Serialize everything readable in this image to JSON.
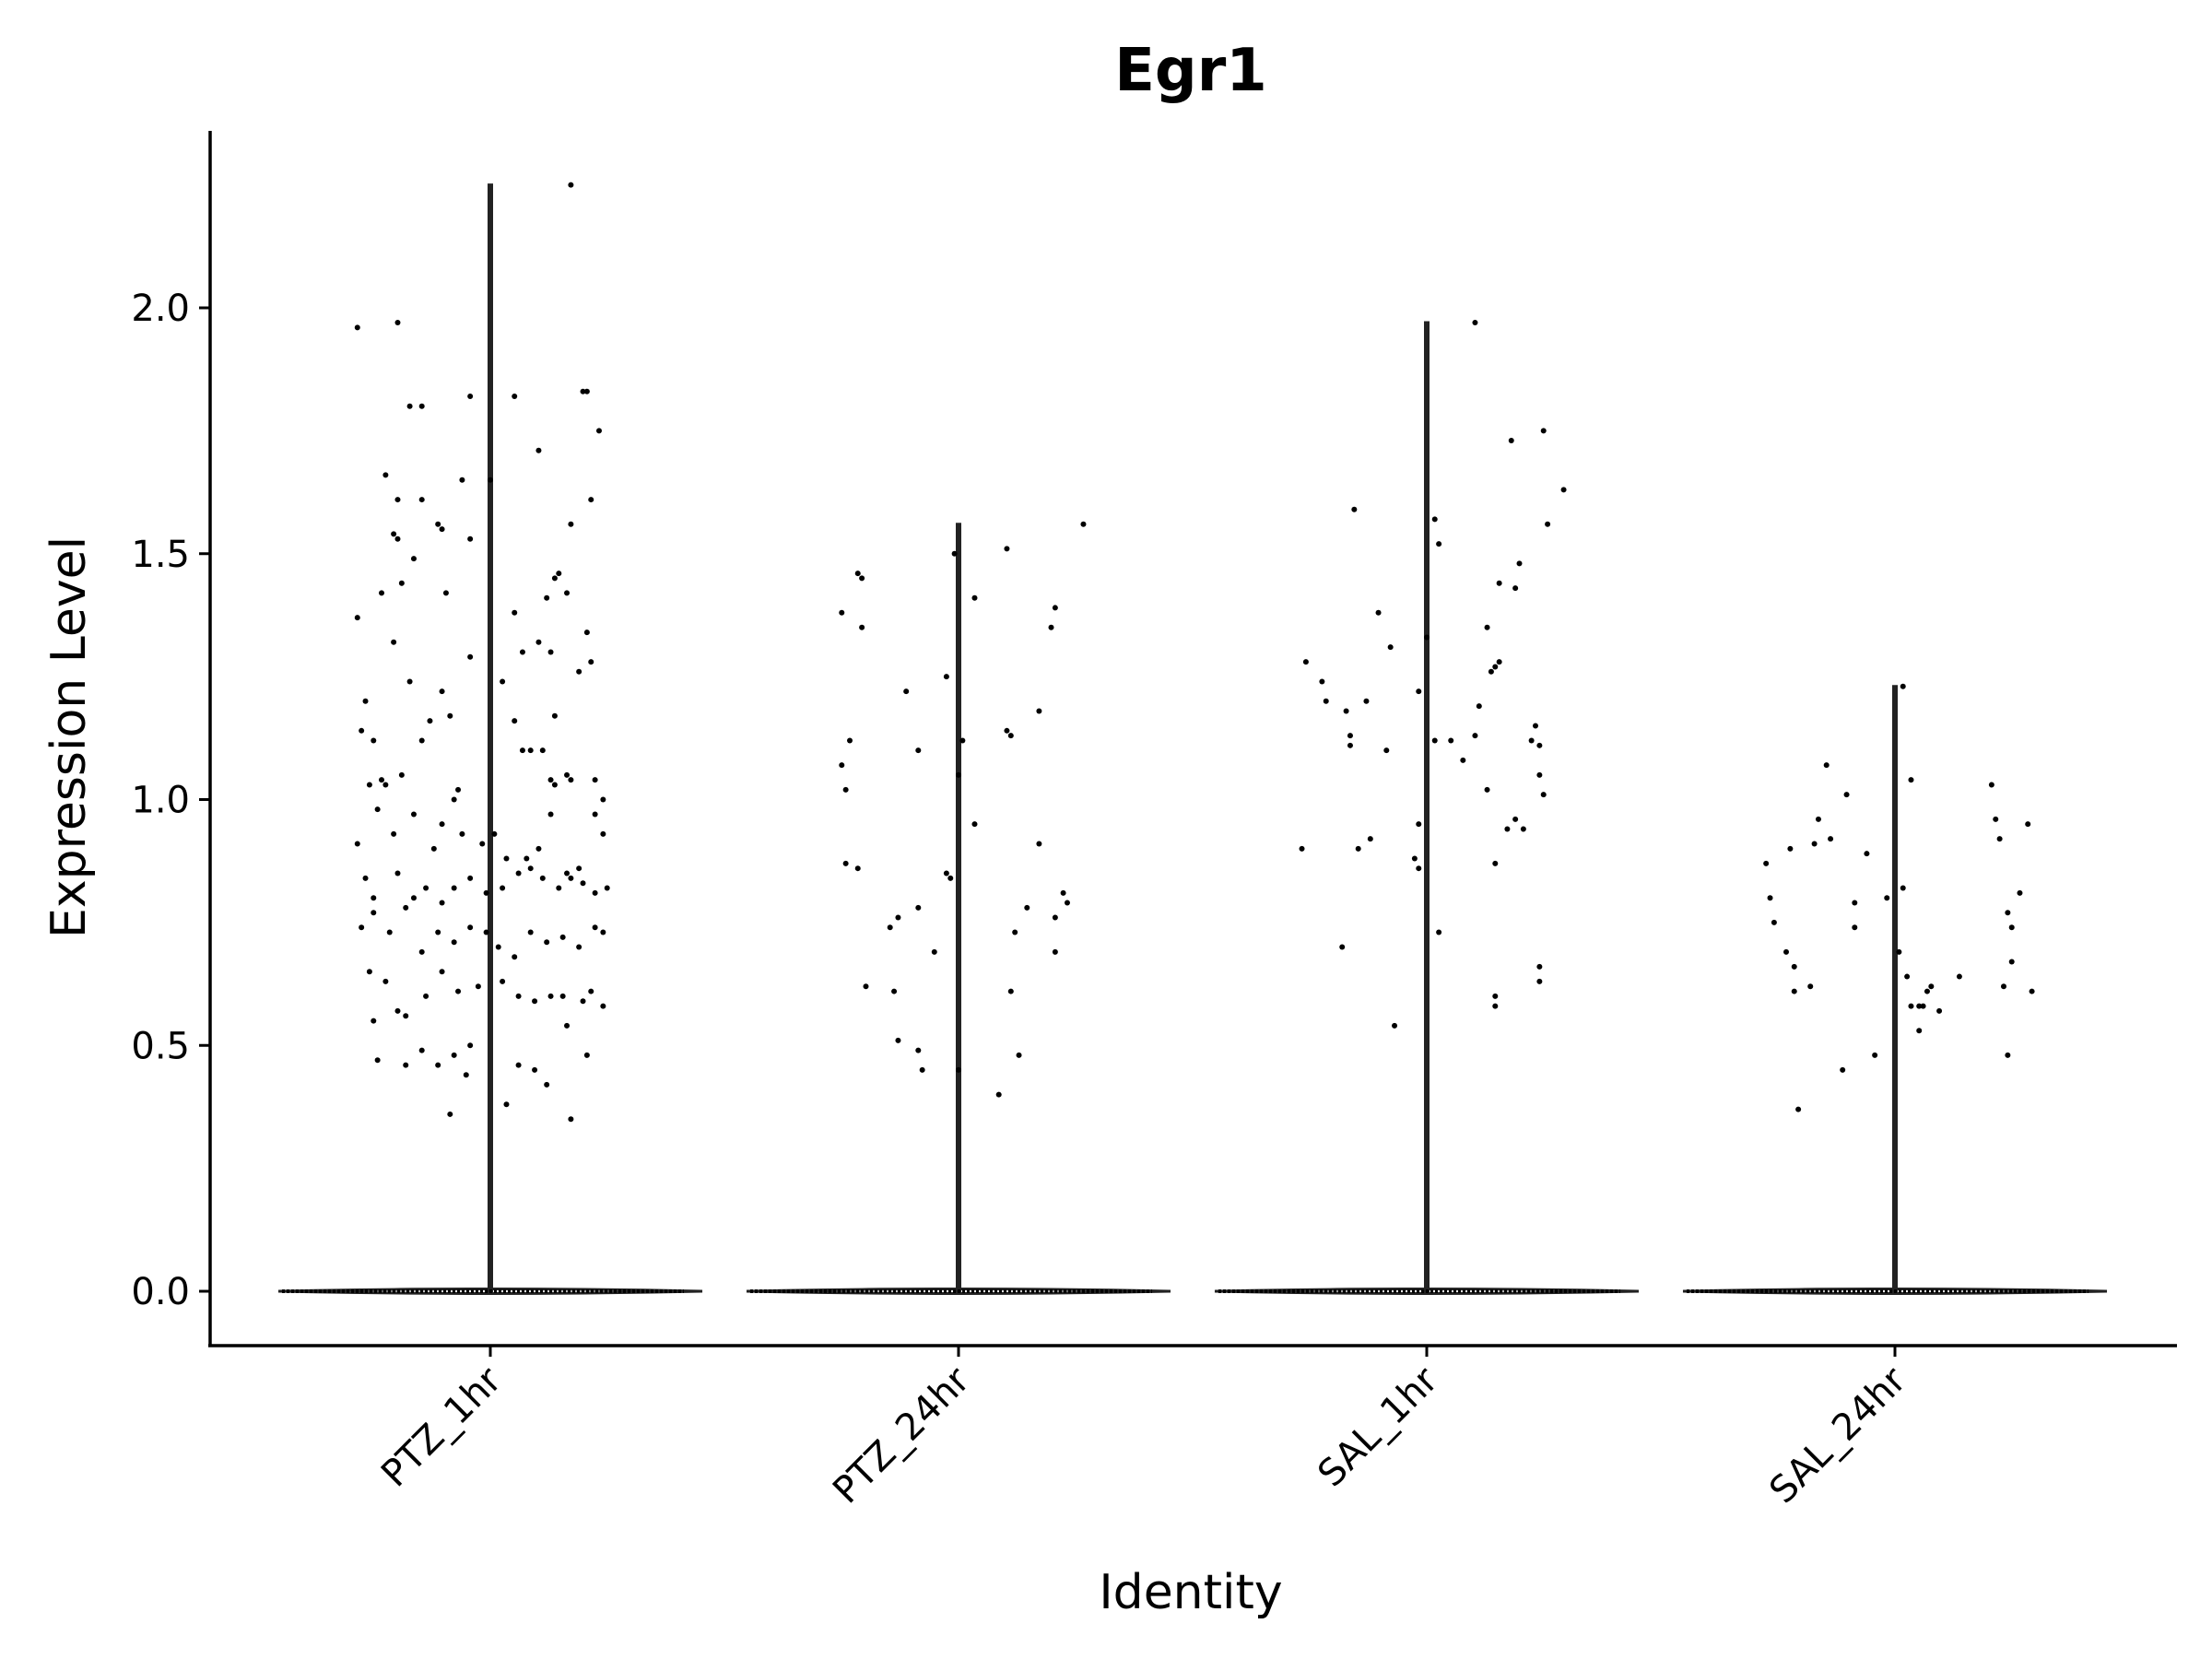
{
  "chart_data": {
    "type": "violin",
    "title": "Egr1",
    "xlabel": "Identity",
    "ylabel": "Expression Level",
    "ylim": [
      -0.11,
      2.37
    ],
    "yticks": [
      0.0,
      0.5,
      1.0,
      1.5,
      2.0
    ],
    "ytick_labels": [
      "0.0",
      "0.5",
      "1.0",
      "1.5",
      "2.0"
    ],
    "grid": false,
    "categories": [
      "PTZ_1hr",
      "PTZ_24hr",
      "SAL_1hr",
      "SAL_24hr"
    ],
    "series": [
      {
        "max": 2.25,
        "points": [
          [
            -0.33,
            1.96
          ],
          [
            -0.23,
            1.97
          ],
          [
            -0.2,
            1.8
          ],
          [
            -0.17,
            1.8
          ],
          [
            -0.05,
            1.82
          ],
          [
            0.06,
            1.82
          ],
          [
            0.24,
            1.83
          ],
          [
            0.23,
            1.83
          ],
          [
            -0.26,
            1.66
          ],
          [
            -0.23,
            1.61
          ],
          [
            -0.17,
            1.61
          ],
          [
            -0.07,
            1.65
          ],
          [
            0.0,
            1.65
          ],
          [
            0.27,
            1.75
          ],
          [
            0.25,
            1.61
          ],
          [
            0.2,
            1.56
          ],
          [
            -0.24,
            1.54
          ],
          [
            -0.23,
            1.53
          ],
          [
            -0.13,
            1.56
          ],
          [
            -0.12,
            1.55
          ],
          [
            -0.05,
            1.53
          ],
          [
            0.12,
            1.71
          ],
          [
            0.16,
            1.45
          ],
          [
            0.17,
            1.46
          ],
          [
            -0.33,
            1.37
          ],
          [
            -0.27,
            1.42
          ],
          [
            -0.22,
            1.44
          ],
          [
            -0.19,
            1.49
          ],
          [
            -0.11,
            1.42
          ],
          [
            0.06,
            1.38
          ],
          [
            0.14,
            1.41
          ],
          [
            0.19,
            1.42
          ],
          [
            -0.31,
            1.2
          ],
          [
            -0.24,
            1.32
          ],
          [
            -0.2,
            1.24
          ],
          [
            -0.15,
            1.16
          ],
          [
            -0.12,
            1.22
          ],
          [
            0.03,
            1.24
          ],
          [
            0.08,
            1.3
          ],
          [
            0.12,
            1.32
          ],
          [
            0.15,
            1.3
          ],
          [
            0.24,
            1.34
          ],
          [
            0.25,
            1.28
          ],
          [
            -0.32,
            1.14
          ],
          [
            -0.29,
            1.12
          ],
          [
            -0.17,
            1.12
          ],
          [
            -0.1,
            1.17
          ],
          [
            -0.05,
            1.29
          ],
          [
            0.06,
            1.16
          ],
          [
            0.13,
            1.1
          ],
          [
            0.16,
            1.17
          ],
          [
            0.22,
            1.26
          ],
          [
            -0.3,
            1.03
          ],
          [
            -0.27,
            1.04
          ],
          [
            -0.26,
            1.03
          ],
          [
            -0.22,
            1.05
          ],
          [
            -0.08,
            1.02
          ],
          [
            -0.09,
            1.0
          ],
          [
            0.08,
            1.1
          ],
          [
            0.1,
            1.1
          ],
          [
            0.15,
            1.04
          ],
          [
            0.16,
            1.03
          ],
          [
            0.19,
            1.05
          ],
          [
            0.2,
            1.04
          ],
          [
            0.26,
            1.04
          ],
          [
            0.28,
            1.0
          ],
          [
            -0.33,
            0.91
          ],
          [
            -0.28,
            0.98
          ],
          [
            -0.24,
            0.93
          ],
          [
            -0.19,
            0.97
          ],
          [
            -0.14,
            0.9
          ],
          [
            -0.12,
            0.95
          ],
          [
            -0.07,
            0.93
          ],
          [
            -0.02,
            0.91
          ],
          [
            0.01,
            0.93
          ],
          [
            0.04,
            0.88
          ],
          [
            0.09,
            0.88
          ],
          [
            0.12,
            0.9
          ],
          [
            0.15,
            0.97
          ],
          [
            0.19,
            0.85
          ],
          [
            0.22,
            0.86
          ],
          [
            0.26,
            0.97
          ],
          [
            0.28,
            0.93
          ],
          [
            -0.31,
            0.84
          ],
          [
            -0.29,
            0.8
          ],
          [
            -0.23,
            0.85
          ],
          [
            -0.19,
            0.8
          ],
          [
            -0.16,
            0.82
          ],
          [
            -0.12,
            0.79
          ],
          [
            -0.09,
            0.82
          ],
          [
            -0.05,
            0.84
          ],
          [
            -0.01,
            0.81
          ],
          [
            0.03,
            0.82
          ],
          [
            0.07,
            0.85
          ],
          [
            0.1,
            0.86
          ],
          [
            0.13,
            0.84
          ],
          [
            0.17,
            0.82
          ],
          [
            0.2,
            0.84
          ],
          [
            0.23,
            0.83
          ],
          [
            0.26,
            0.81
          ],
          [
            0.29,
            0.82
          ],
          [
            -0.32,
            0.74
          ],
          [
            -0.29,
            0.77
          ],
          [
            -0.25,
            0.73
          ],
          [
            -0.21,
            0.78
          ],
          [
            -0.17,
            0.69
          ],
          [
            -0.13,
            0.73
          ],
          [
            -0.09,
            0.71
          ],
          [
            -0.05,
            0.74
          ],
          [
            -0.01,
            0.73
          ],
          [
            0.02,
            0.7
          ],
          [
            0.06,
            0.68
          ],
          [
            0.1,
            0.73
          ],
          [
            0.14,
            0.71
          ],
          [
            0.18,
            0.72
          ],
          [
            0.22,
            0.7
          ],
          [
            0.26,
            0.74
          ],
          [
            0.28,
            0.73
          ],
          [
            -0.3,
            0.65
          ],
          [
            -0.26,
            0.63
          ],
          [
            -0.23,
            0.57
          ],
          [
            -0.21,
            0.56
          ],
          [
            -0.16,
            0.6
          ],
          [
            -0.12,
            0.65
          ],
          [
            -0.08,
            0.61
          ],
          [
            -0.03,
            0.62
          ],
          [
            0.03,
            0.63
          ],
          [
            0.07,
            0.6
          ],
          [
            0.11,
            0.59
          ],
          [
            0.15,
            0.6
          ],
          [
            0.18,
            0.6
          ],
          [
            0.23,
            0.59
          ],
          [
            0.25,
            0.61
          ],
          [
            0.28,
            0.58
          ],
          [
            -0.29,
            0.55
          ],
          [
            -0.28,
            0.47
          ],
          [
            -0.21,
            0.46
          ],
          [
            -0.17,
            0.49
          ],
          [
            -0.13,
            0.46
          ],
          [
            -0.09,
            0.48
          ],
          [
            -0.06,
            0.44
          ],
          [
            -0.05,
            0.5
          ],
          [
            0.04,
            0.38
          ],
          [
            0.07,
            0.46
          ],
          [
            0.11,
            0.45
          ],
          [
            0.14,
            0.42
          ],
          [
            0.19,
            0.54
          ],
          [
            0.24,
            0.48
          ],
          [
            0.2,
            0.35
          ],
          [
            -0.1,
            0.36
          ],
          [
            0.2,
            2.25
          ]
        ]
      },
      {
        "max": 1.56,
        "points": [
          [
            -0.29,
            1.38
          ],
          [
            -0.25,
            1.46
          ],
          [
            -0.24,
            1.45
          ],
          [
            -0.24,
            1.35
          ],
          [
            -0.13,
            1.22
          ],
          [
            -0.01,
            1.5
          ],
          [
            0.04,
            1.41
          ],
          [
            0.12,
            1.51
          ],
          [
            0.23,
            1.35
          ],
          [
            0.24,
            1.39
          ],
          [
            0.31,
            1.56
          ],
          [
            -0.29,
            1.07
          ],
          [
            -0.28,
            1.02
          ],
          [
            -0.27,
            1.12
          ],
          [
            -0.1,
            1.1
          ],
          [
            -0.03,
            1.25
          ],
          [
            0.0,
            1.05
          ],
          [
            0.01,
            1.12
          ],
          [
            0.12,
            1.14
          ],
          [
            0.13,
            1.13
          ],
          [
            0.2,
            1.18
          ],
          [
            -0.28,
            0.87
          ],
          [
            -0.25,
            0.86
          ],
          [
            -0.03,
            0.85
          ],
          [
            -0.02,
            0.84
          ],
          [
            0.04,
            0.95
          ],
          [
            0.2,
            0.91
          ],
          [
            0.26,
            0.81
          ],
          [
            0.27,
            0.79
          ],
          [
            -0.23,
            0.62
          ],
          [
            -0.17,
            0.74
          ],
          [
            -0.15,
            0.76
          ],
          [
            -0.1,
            0.78
          ],
          [
            -0.06,
            0.69
          ],
          [
            0.14,
            0.73
          ],
          [
            0.17,
            0.78
          ],
          [
            0.24,
            0.69
          ],
          [
            0.24,
            0.76
          ],
          [
            -0.16,
            0.61
          ],
          [
            -0.15,
            0.51
          ],
          [
            -0.1,
            0.49
          ],
          [
            -0.09,
            0.45
          ],
          [
            0.0,
            0.45
          ],
          [
            0.13,
            0.61
          ],
          [
            0.15,
            0.48
          ],
          [
            0.1,
            0.4
          ]
        ]
      },
      {
        "max": 1.97,
        "points": [
          [
            0.12,
            1.97
          ],
          [
            0.21,
            1.73
          ],
          [
            0.29,
            1.75
          ],
          [
            -0.18,
            1.59
          ],
          [
            0.02,
            1.57
          ],
          [
            0.03,
            1.52
          ],
          [
            0.3,
            1.56
          ],
          [
            0.34,
            1.63
          ],
          [
            -0.3,
            1.28
          ],
          [
            -0.26,
            1.24
          ],
          [
            -0.25,
            1.2
          ],
          [
            -0.2,
            1.18
          ],
          [
            -0.19,
            1.13
          ],
          [
            -0.19,
            1.11
          ],
          [
            -0.15,
            1.2
          ],
          [
            -0.12,
            1.38
          ],
          [
            -0.09,
            1.31
          ],
          [
            -0.02,
            1.22
          ],
          [
            0.0,
            1.33
          ],
          [
            0.06,
            1.12
          ],
          [
            0.09,
            1.08
          ],
          [
            0.12,
            1.13
          ],
          [
            0.15,
            1.35
          ],
          [
            0.16,
            1.26
          ],
          [
            0.17,
            1.27
          ],
          [
            0.18,
            1.28
          ],
          [
            0.18,
            1.44
          ],
          [
            0.22,
            1.43
          ],
          [
            0.23,
            1.48
          ],
          [
            0.26,
            1.12
          ],
          [
            0.27,
            1.15
          ],
          [
            0.28,
            1.11
          ],
          [
            -0.31,
            0.9
          ],
          [
            -0.21,
            0.7
          ],
          [
            -0.17,
            0.9
          ],
          [
            -0.14,
            0.92
          ],
          [
            -0.1,
            1.1
          ],
          [
            -0.03,
            0.88
          ],
          [
            -0.02,
            0.86
          ],
          [
            -0.02,
            0.95
          ],
          [
            0.02,
            1.12
          ],
          [
            0.03,
            0.73
          ],
          [
            0.13,
            1.19
          ],
          [
            0.15,
            1.02
          ],
          [
            0.17,
            0.87
          ],
          [
            0.2,
            0.94
          ],
          [
            0.22,
            0.96
          ],
          [
            0.24,
            0.94
          ],
          [
            0.28,
            1.05
          ],
          [
            0.29,
            1.01
          ],
          [
            -0.08,
            0.54
          ],
          [
            0.17,
            0.6
          ],
          [
            0.17,
            0.58
          ],
          [
            0.28,
            0.66
          ],
          [
            0.28,
            0.63
          ]
        ]
      },
      {
        "max": 1.23,
        "points": [
          [
            -0.32,
            0.87
          ],
          [
            -0.31,
            0.8
          ],
          [
            -0.3,
            0.75
          ],
          [
            -0.27,
            0.69
          ],
          [
            -0.26,
            0.9
          ],
          [
            -0.25,
            0.66
          ],
          [
            -0.25,
            0.61
          ],
          [
            -0.21,
            0.62
          ],
          [
            -0.2,
            0.91
          ],
          [
            -0.19,
            0.96
          ],
          [
            -0.17,
            1.07
          ],
          [
            -0.16,
            0.92
          ],
          [
            -0.12,
            1.01
          ],
          [
            -0.1,
            0.74
          ],
          [
            -0.1,
            0.79
          ],
          [
            -0.07,
            0.89
          ],
          [
            -0.05,
            0.48
          ],
          [
            -0.02,
            0.8
          ],
          [
            0.02,
            0.82
          ],
          [
            0.01,
            0.69
          ],
          [
            0.03,
            0.64
          ],
          [
            0.04,
            0.58
          ],
          [
            0.04,
            1.04
          ],
          [
            0.06,
            0.58
          ],
          [
            0.07,
            0.58
          ],
          [
            0.08,
            0.61
          ],
          [
            0.09,
            0.62
          ],
          [
            0.11,
            0.57
          ],
          [
            0.02,
            1.23
          ],
          [
            -0.24,
            0.37
          ],
          [
            -0.13,
            0.45
          ],
          [
            0.06,
            0.53
          ],
          [
            0.16,
            0.64
          ],
          [
            0.24,
            1.03
          ],
          [
            0.25,
            0.96
          ],
          [
            0.26,
            0.92
          ],
          [
            0.27,
            0.62
          ],
          [
            0.28,
            0.77
          ],
          [
            0.29,
            0.74
          ],
          [
            0.29,
            0.67
          ],
          [
            0.31,
            0.81
          ],
          [
            0.33,
            0.95
          ],
          [
            0.34,
            0.61
          ],
          [
            0.28,
            0.48
          ]
        ]
      }
    ]
  }
}
